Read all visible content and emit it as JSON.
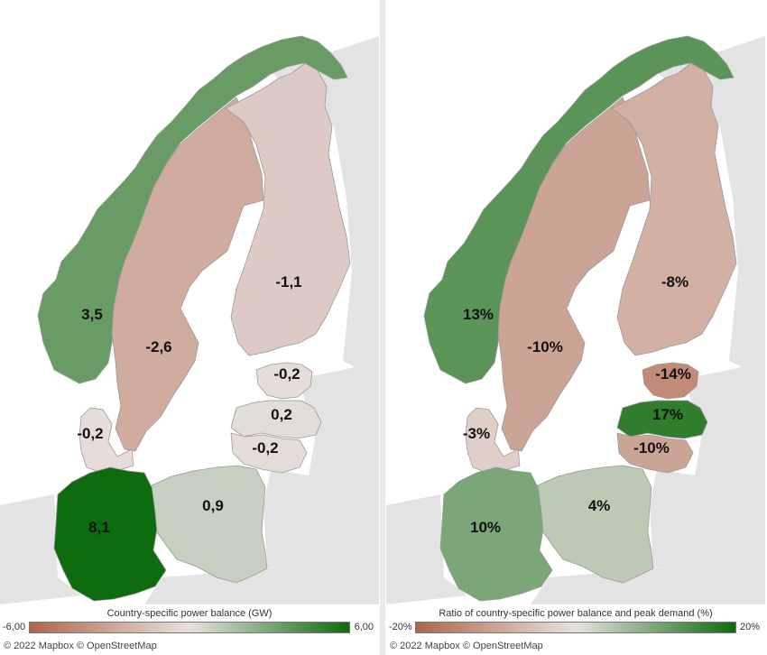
{
  "colors": {
    "land": "#e3e3e3",
    "water": "#ffffff",
    "scale_low": "#b0664a",
    "scale_mid": "#e8e1df",
    "scale_high": "#0e6b0e"
  },
  "maps": [
    {
      "id": "gw",
      "legend": {
        "title": "Country-specific power balance (GW)",
        "min_label": "-6,00",
        "max_label": "6,00",
        "min": -6,
        "max": 6
      },
      "attribution": "© 2022 Mapbox © OpenStreetMap",
      "regions": [
        {
          "name": "norway",
          "value": 3.5,
          "label": "3,5"
        },
        {
          "name": "sweden",
          "value": -2.6,
          "label": "-2,6"
        },
        {
          "name": "finland",
          "value": -1.1,
          "label": "-1,1"
        },
        {
          "name": "estonia",
          "value": -0.2,
          "label": "-0,2"
        },
        {
          "name": "latvia",
          "value": 0.2,
          "label": "0,2"
        },
        {
          "name": "lithuania",
          "value": -0.2,
          "label": "-0,2"
        },
        {
          "name": "denmark",
          "value": -0.2,
          "label": "-0,2"
        },
        {
          "name": "germany",
          "value": 8.1,
          "label": "8,1"
        },
        {
          "name": "poland",
          "value": 0.9,
          "label": "0,9"
        }
      ]
    },
    {
      "id": "pct",
      "legend": {
        "title": "Ratio of country-specific power balance and peak demand (%)",
        "min_label": "-20%",
        "max_label": "20%",
        "min": -20,
        "max": 20
      },
      "attribution": "© 2022 Mapbox © OpenStreetMap",
      "regions": [
        {
          "name": "norway",
          "value": 13,
          "label": "13%"
        },
        {
          "name": "sweden",
          "value": -10,
          "label": "-10%"
        },
        {
          "name": "finland",
          "value": -8,
          "label": "-8%"
        },
        {
          "name": "estonia",
          "value": -14,
          "label": "-14%"
        },
        {
          "name": "latvia",
          "value": 17,
          "label": "17%"
        },
        {
          "name": "lithuania",
          "value": -10,
          "label": "-10%"
        },
        {
          "name": "denmark",
          "value": -3,
          "label": "-3%"
        },
        {
          "name": "germany",
          "value": 10,
          "label": "10%"
        },
        {
          "name": "poland",
          "value": 4,
          "label": "4%"
        }
      ]
    }
  ]
}
